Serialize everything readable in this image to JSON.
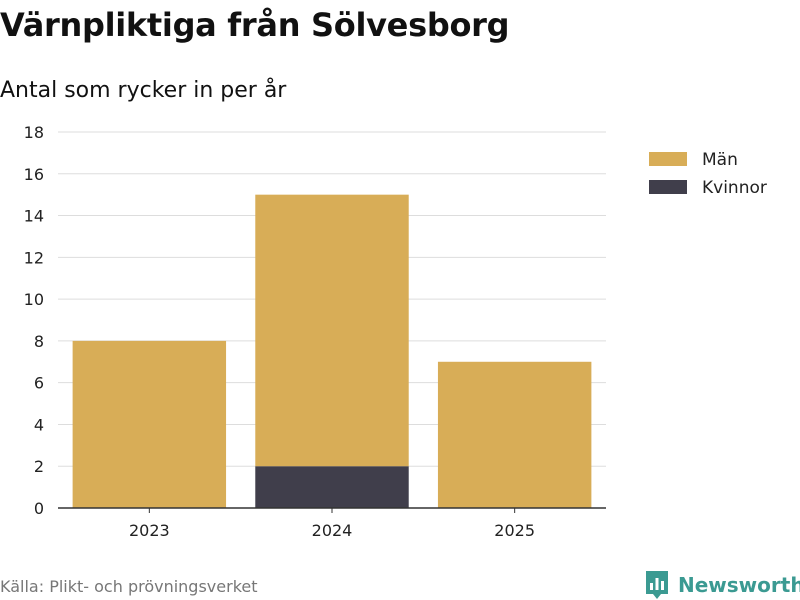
{
  "title": "Värnpliktiga från Sölvesborg",
  "subtitle": "Antal som rycker in per år",
  "source": "Källa: Plikt- och prövningsverket",
  "brand": {
    "name": "Newsworthy",
    "icon": "newsworthy-logo-icon",
    "color": "#3b9a92"
  },
  "chart_data": {
    "type": "bar",
    "stacked": true,
    "categories": [
      "2023",
      "2024",
      "2025"
    ],
    "series": [
      {
        "name": "Kvinnor",
        "values": [
          0,
          2,
          0
        ],
        "color": "#403e4b"
      },
      {
        "name": "Män",
        "values": [
          8,
          13,
          7
        ],
        "color": "#d8ad57"
      }
    ],
    "ylim": [
      0,
      18
    ],
    "yticks": [
      0,
      2,
      4,
      6,
      8,
      10,
      12,
      14,
      16,
      18
    ],
    "grid": true,
    "legend": {
      "position": "right",
      "order": [
        "Män",
        "Kvinnor"
      ]
    }
  }
}
